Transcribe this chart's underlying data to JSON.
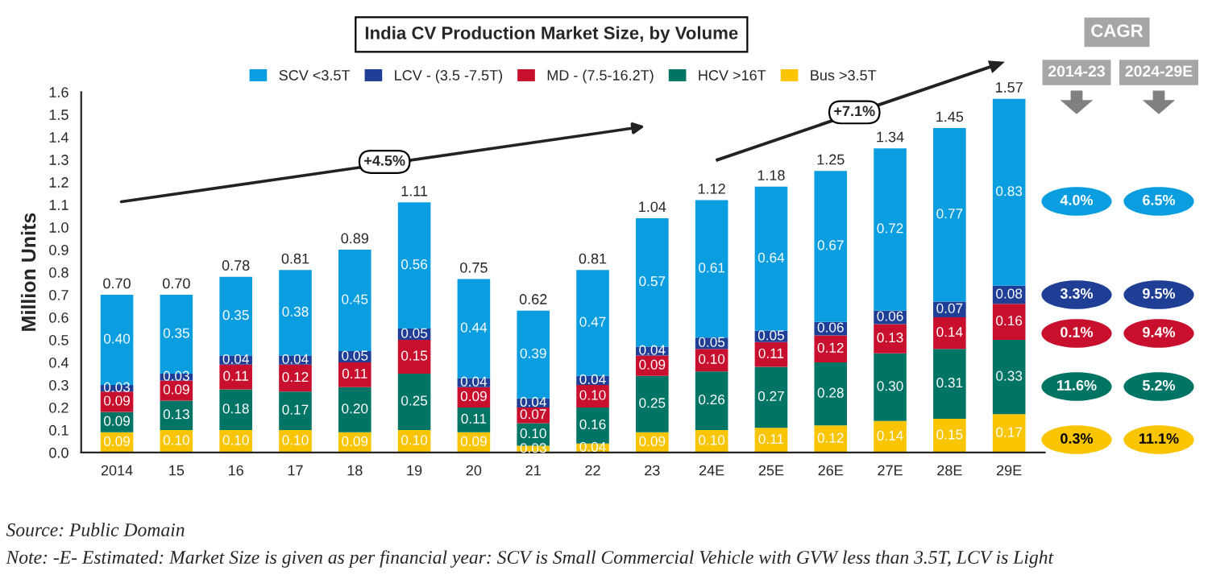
{
  "chart_data": {
    "type": "bar",
    "stacked": true,
    "title": "India CV Production Market Size, by Volume",
    "ylabel": "Million Units",
    "categories": [
      "2014",
      "15",
      "16",
      "17",
      "18",
      "19",
      "20",
      "21",
      "22",
      "23",
      "24E",
      "25E",
      "26E",
      "27E",
      "28E",
      "29E"
    ],
    "series": [
      {
        "name": "Bus >3.5T",
        "color": "#f9c400",
        "values": [
          0.09,
          0.1,
          0.1,
          0.1,
          0.09,
          0.1,
          0.09,
          0.03,
          0.04,
          0.09,
          0.1,
          0.11,
          0.12,
          0.14,
          0.15,
          0.17
        ],
        "value_labels": [
          "0.09",
          "0.10",
          "0.10",
          "0.10",
          "0.09",
          "0.10",
          "0.09",
          "0.03",
          "0.04",
          "0.09",
          "0.10",
          "0.11",
          "0.12",
          "0.14",
          "0.15",
          "0.17"
        ]
      },
      {
        "name": "HCV >16T",
        "color": "#007566",
        "values": [
          0.09,
          0.13,
          0.18,
          0.17,
          0.2,
          0.25,
          0.11,
          0.1,
          0.16,
          0.25,
          0.26,
          0.27,
          0.28,
          0.3,
          0.31,
          0.33
        ],
        "value_labels": [
          "0.09",
          "0.13",
          "0.18",
          "0.17",
          "0.20",
          "0.25",
          "0.11",
          "0.10",
          "0.16",
          "0.25",
          "0.26",
          "0.27",
          "0.28",
          "0.30",
          "0.31",
          "0.33"
        ]
      },
      {
        "name": "MD - (7.5-16.2T)",
        "color": "#c8102e",
        "values": [
          0.09,
          0.09,
          0.11,
          0.12,
          0.11,
          0.15,
          0.09,
          0.07,
          0.1,
          0.09,
          0.1,
          0.11,
          0.12,
          0.13,
          0.14,
          0.16
        ],
        "value_labels": [
          "0.09",
          "0.09",
          "0.11",
          "0.12",
          "0.11",
          "0.15",
          "0.09",
          "0.07",
          "0.10",
          "0.09",
          "0.10",
          "0.11",
          "0.12",
          "0.13",
          "0.14",
          "0.16"
        ]
      },
      {
        "name": "LCV - (3.5 -7.5T)",
        "color": "#1f3e96",
        "values": [
          0.03,
          0.03,
          0.04,
          0.04,
          0.05,
          0.05,
          0.04,
          0.04,
          0.04,
          0.04,
          0.05,
          0.05,
          0.06,
          0.06,
          0.07,
          0.08
        ],
        "value_labels": [
          "0.03",
          "0.03",
          "0.04",
          "0.04",
          "0.05",
          "0.05",
          "0.04",
          "0.04",
          "0.04",
          "0.04",
          "0.05",
          "0.05",
          "0.06",
          "0.06",
          "0.07",
          "0.08"
        ]
      },
      {
        "name": "SCV <3.5T",
        "color": "#0a9ee0",
        "values": [
          0.4,
          0.35,
          0.35,
          0.38,
          0.45,
          0.56,
          0.44,
          0.39,
          0.47,
          0.57,
          0.61,
          0.64,
          0.67,
          0.72,
          0.77,
          0.83
        ],
        "value_labels": [
          "0.40",
          "0.35",
          "0.35",
          "0.38",
          "0.45",
          "0.56",
          "0.44",
          "0.39",
          "0.47",
          "0.57",
          "0.61",
          "0.64",
          "0.67",
          "0.72",
          "0.77",
          "0.83"
        ]
      }
    ],
    "totals": [
      "0.70",
      "0.70",
      "0.78",
      "0.81",
      "0.89",
      "1.11",
      "0.75",
      "0.62",
      "0.81",
      "1.04",
      "1.12",
      "1.18",
      "1.25",
      "1.34",
      "1.45",
      "1.57"
    ],
    "ylim": [
      0,
      1.6
    ],
    "yticks": [
      {
        "value": 0,
        "label": "0.0"
      },
      0.1,
      0.2,
      0.3,
      0.4,
      0.5,
      0.6,
      0.7,
      0.8,
      0.9,
      {
        "value": 1,
        "label": "1.0"
      },
      1.1,
      1.2,
      1.3,
      1.4,
      1.5,
      1.6
    ],
    "legend": "top",
    "grid": false,
    "annotations": [
      "+4.5%",
      "+7.1%",
      "CAGR",
      "2014-23",
      "2024-29E",
      "0.3%",
      "11.1%",
      "11.6%",
      "5.2%",
      "0.1%",
      "9.4%",
      "3.3%",
      "9.5%",
      "4.0%",
      "6.5%",
      "Source: Public Domain",
      "Note: -E- Estimated: Market Size is given as per financial year: SCV is Small Commercial Vehicle with GVW less than 3.5T, LCV is Light"
    ]
  }
}
